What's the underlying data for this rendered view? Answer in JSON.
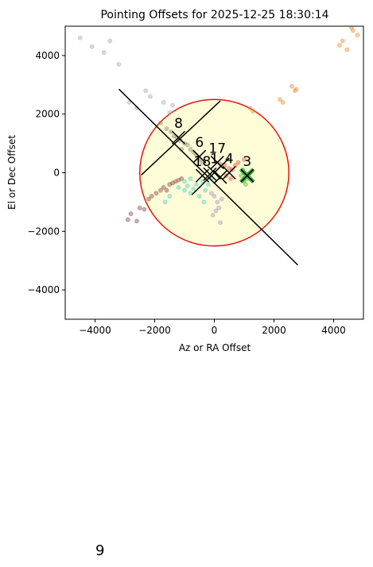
{
  "chart_data": {
    "type": "scatter",
    "title": "Pointing Offsets for 2025-12-25 18:30:14",
    "xlabel": "Az or RA Offset",
    "ylabel": "El or Dec Offset",
    "xlim": [
      -5000,
      5000
    ],
    "ylim": [
      -5000,
      5000
    ],
    "xticks": [
      -4000,
      -2000,
      0,
      2000,
      4000
    ],
    "yticks": [
      -4000,
      -2000,
      0,
      2000,
      4000
    ],
    "xtick_labels": [
      "−4000",
      "−2000",
      "0",
      "2000",
      "4000"
    ],
    "ytick_labels": [
      "−4000",
      "−2000",
      "0",
      "2000",
      "4000"
    ],
    "grid": false,
    "circle": {
      "center": [
        0,
        0
      ],
      "radius": 2500,
      "edge_color": "#e8140c",
      "fill_color": "#fffcd8"
    },
    "lines": [
      {
        "from": [
          -3200,
          2850
        ],
        "to": [
          2800,
          -3150
        ]
      },
      {
        "from": [
          -2450,
          -80
        ],
        "to": [
          200,
          2450
        ]
      },
      {
        "from": [
          -750,
          -750
        ],
        "to": [
          500,
          500
        ]
      }
    ],
    "series": [
      {
        "color": "#a9a9a9",
        "points": [
          [
            -4500,
            4600
          ],
          [
            -4100,
            4300
          ],
          [
            -3700,
            4100
          ],
          [
            -3500,
            4500
          ],
          [
            -3200,
            3700
          ],
          [
            -2300,
            2800
          ],
          [
            -2150,
            2600
          ],
          [
            -2600,
            2200
          ],
          [
            -2850,
            2400
          ],
          [
            -1700,
            2400
          ],
          [
            -1500,
            2050
          ],
          [
            -1400,
            2300
          ]
        ]
      },
      {
        "color": "#8a8a6a",
        "points": [
          [
            -1800,
            1700
          ],
          [
            -1600,
            1500
          ],
          [
            -1450,
            1400
          ],
          [
            -1350,
            1250
          ],
          [
            -1250,
            1200
          ],
          [
            -1150,
            1100
          ],
          [
            -1000,
            1000
          ],
          [
            -900,
            950
          ],
          [
            -800,
            800
          ],
          [
            -700,
            700
          ],
          [
            -1100,
            800
          ],
          [
            -600,
            600
          ],
          [
            -500,
            450
          ],
          [
            -400,
            350
          ]
        ]
      },
      {
        "color": "#8b4a4a",
        "points": [
          [
            -2200,
            -900
          ],
          [
            -2100,
            -800
          ],
          [
            -1950,
            -700
          ],
          [
            -1800,
            -600
          ],
          [
            -1700,
            -500
          ],
          [
            -1600,
            -600
          ],
          [
            -1500,
            -400
          ],
          [
            -1400,
            -350
          ],
          [
            -1300,
            -300
          ],
          [
            -1200,
            -250
          ],
          [
            -1100,
            -200
          ],
          [
            -2350,
            -1250
          ],
          [
            -2500,
            -1200
          ],
          [
            -2800,
            -1400
          ],
          [
            -2900,
            -1600
          ],
          [
            -2600,
            -1650
          ]
        ]
      },
      {
        "color": "#4fd0c8",
        "points": [
          [
            -1200,
            -500
          ],
          [
            -1000,
            -600
          ],
          [
            -900,
            -450
          ],
          [
            -800,
            -700
          ],
          [
            -700,
            -550
          ],
          [
            -600,
            -400
          ],
          [
            -500,
            -800
          ],
          [
            -400,
            -300
          ],
          [
            -300,
            -600
          ],
          [
            -200,
            -400
          ],
          [
            -100,
            -200
          ],
          [
            -800,
            -200
          ],
          [
            -1000,
            -300
          ],
          [
            -1500,
            -800
          ],
          [
            -1650,
            -1000
          ],
          [
            -350,
            -1000
          ]
        ]
      },
      {
        "color": "#b090c0",
        "points": [
          [
            -100,
            -700
          ],
          [
            0,
            -800
          ],
          [
            100,
            -1000
          ],
          [
            50,
            -1300
          ],
          [
            -50,
            -1450
          ],
          [
            150,
            -1200
          ],
          [
            250,
            -900
          ],
          [
            200,
            -1700
          ]
        ]
      },
      {
        "color": "#f08a3a",
        "points": [
          [
            2200,
            2500
          ],
          [
            2300,
            2400
          ],
          [
            2600,
            2950
          ],
          [
            2700,
            2800
          ],
          [
            2750,
            2850
          ],
          [
            4300,
            4500
          ],
          [
            4450,
            4200
          ],
          [
            4600,
            4950
          ],
          [
            4650,
            4850
          ],
          [
            4800,
            4700
          ],
          [
            4200,
            4350
          ],
          [
            1200,
            2200
          ],
          [
            1300,
            2100
          ]
        ]
      },
      {
        "color": "#e0554a",
        "points": [
          [
            200,
            300
          ],
          [
            350,
            250
          ],
          [
            500,
            150
          ],
          [
            600,
            100
          ],
          [
            700,
            250
          ],
          [
            800,
            350
          ],
          [
            1000,
            450
          ],
          [
            400,
            -100
          ],
          [
            550,
            -200
          ]
        ]
      },
      {
        "color": "#4cc04c",
        "points": [
          [
            900,
            -100
          ],
          [
            1000,
            -300
          ],
          [
            1100,
            -200
          ],
          [
            1200,
            0
          ],
          [
            1050,
            -400
          ],
          [
            950,
            100
          ],
          [
            1150,
            -50
          ]
        ]
      }
    ],
    "markers": [
      {
        "label": "8",
        "x": -1200,
        "y": 1200
      },
      {
        "label": "6",
        "x": -500,
        "y": 550
      },
      {
        "label": "17",
        "x": 100,
        "y": 350
      },
      {
        "label": "1",
        "x": 0,
        "y": 0
      },
      {
        "label": "4",
        "x": 500,
        "y": 0
      },
      {
        "label": "3",
        "x": 1100,
        "y": -100
      },
      {
        "label": "18",
        "x": -400,
        "y": -100
      },
      {
        "label": "",
        "x": -150,
        "y": -50
      },
      {
        "label": "",
        "x": 200,
        "y": -150
      }
    ],
    "marker_highlight_color": "#3aa83a",
    "stray_label": "9"
  }
}
